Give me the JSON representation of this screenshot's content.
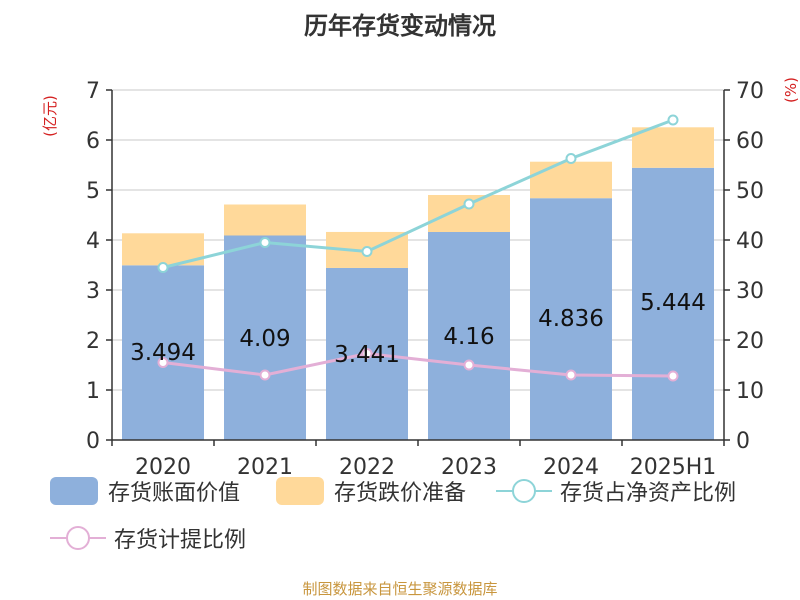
{
  "chart_data": {
    "type": "bar",
    "title": "历年存货变动情况",
    "left_axis_unit": "(亿元)",
    "right_axis_unit": "(%)",
    "categories": [
      "2020",
      "2021",
      "2022",
      "2023",
      "2024",
      "2025H1"
    ],
    "y_left": {
      "min": 0,
      "max": 7,
      "ticks": [
        "0",
        "1",
        "2",
        "3",
        "4",
        "5",
        "6",
        "7"
      ]
    },
    "y_right": {
      "min": 0,
      "max": 70,
      "ticks": [
        "0",
        "10",
        "20",
        "30",
        "40",
        "50",
        "60",
        "70"
      ]
    },
    "stacked": true,
    "grid": true,
    "legend_position": "bottom",
    "series": [
      {
        "name": "存货账面价值",
        "type": "bar",
        "axis": "left",
        "color": "#8eb0dc",
        "values": [
          3.494,
          4.09,
          3.441,
          4.16,
          4.836,
          5.444
        ],
        "labels": [
          "3.494",
          "4.09",
          "3.441",
          "4.16",
          "4.836",
          "5.444"
        ]
      },
      {
        "name": "存货跌价准备",
        "type": "bar",
        "axis": "left",
        "color": "#ffd99a",
        "values": [
          0.64,
          0.62,
          0.72,
          0.74,
          0.73,
          0.81
        ]
      },
      {
        "name": "存货占净资产比例",
        "type": "line",
        "axis": "right",
        "color": "#8dd4d8",
        "values": [
          34.5,
          39.5,
          37.7,
          47.2,
          56.3,
          64.0
        ]
      },
      {
        "name": "存货计提比例",
        "type": "line",
        "axis": "right",
        "color": "#e3afd6",
        "values": [
          15.5,
          13.0,
          17.3,
          15.0,
          13.0,
          12.8
        ]
      }
    ]
  },
  "source": "制图数据来自恒生聚源数据库"
}
